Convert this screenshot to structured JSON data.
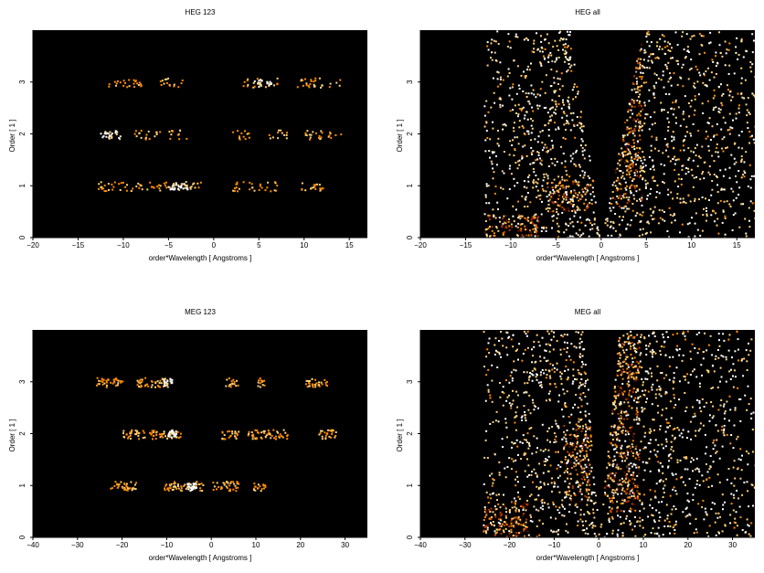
{
  "chart_data": [
    {
      "type": "heatmap",
      "panel": "top-left",
      "title": "HEG 123",
      "xlabel": "order*Wavelength [ Angstroms ]",
      "ylabel": "Order [ 1 ]",
      "xlim": [
        -20,
        17
      ],
      "ylim": [
        0,
        4
      ],
      "xticks": [
        -20,
        -15,
        -10,
        -5,
        0,
        5,
        10,
        15
      ],
      "yticks": [
        0,
        1,
        2,
        3
      ],
      "background": "#000000",
      "colormap": [
        "#000000",
        "#5a1000",
        "#b33a00",
        "#ff8c00",
        "#ffd27a",
        "#ffffff"
      ],
      "bands": [
        {
          "order": 1,
          "segments": [
            [
              -13,
              -6
            ],
            [
              -6,
              -1.5
            ],
            [
              2,
              7
            ],
            [
              9,
              12
            ]
          ],
          "peak_x": -4,
          "peak_density": 0.9
        },
        {
          "order": 2,
          "segments": [
            [
              -12,
              -10
            ],
            [
              -9,
              -6
            ],
            [
              -5,
              -3
            ],
            [
              2,
              4
            ],
            [
              6,
              8
            ],
            [
              10,
              14
            ]
          ],
          "peak_x": -11.5,
          "peak_density": 0.6
        },
        {
          "order": 3,
          "segments": [
            [
              -12,
              -8
            ],
            [
              -6,
              -3.5
            ],
            [
              3,
              7
            ],
            [
              9,
              14
            ]
          ],
          "peak_x": 5.5,
          "peak_density": 0.5
        }
      ]
    },
    {
      "type": "heatmap",
      "panel": "top-right",
      "title": "HEG all",
      "xlabel": "order*Wavelength [ Angstroms ]",
      "ylabel": "Order [ 1 ]",
      "xlim": [
        -20,
        17
      ],
      "ylim": [
        0,
        4
      ],
      "xticks": [
        -20,
        -15,
        -10,
        -5,
        0,
        5,
        10,
        15
      ],
      "yticks": [
        0,
        1,
        2,
        3
      ],
      "background": "#000000",
      "colormap": [
        "#000000",
        "#5a1000",
        "#b33a00",
        "#ff8c00",
        "#ffd27a",
        "#ffffff"
      ],
      "cone": {
        "apex_x": 0,
        "left_top_x": -3.5,
        "right_top_x": 4.5
      },
      "data_x_range": [
        -13,
        17
      ],
      "hot_regions": [
        {
          "x": [
            -13,
            -7
          ],
          "y": [
            0,
            0.45
          ],
          "intensity": 0.9
        },
        {
          "x": [
            -6,
            -1
          ],
          "y": [
            0.5,
            1.1
          ],
          "intensity": 0.8
        },
        {
          "x": [
            1,
            4.5
          ],
          "y": [
            0.6,
            3.9
          ],
          "intensity": 0.7
        }
      ]
    },
    {
      "type": "heatmap",
      "panel": "bottom-left",
      "title": "MEG 123",
      "xlabel": "order*Wavelength [ Angstroms ]",
      "ylabel": "Order [ 1 ]",
      "xlim": [
        -40,
        35
      ],
      "ylim": [
        0,
        4
      ],
      "xticks": [
        -40,
        -30,
        -20,
        -10,
        0,
        10,
        20,
        30
      ],
      "yticks": [
        0,
        1,
        2,
        3
      ],
      "background": "#000000",
      "colormap": [
        "#000000",
        "#5a1000",
        "#b33a00",
        "#ff8c00",
        "#ffd27a",
        "#ffffff"
      ],
      "bands": [
        {
          "order": 1,
          "segments": [
            [
              -23,
              -17
            ],
            [
              -11,
              -2
            ],
            [
              0,
              6
            ],
            [
              9,
              12
            ]
          ],
          "peak_x": -4.5,
          "peak_density": 0.9
        },
        {
          "order": 2,
          "segments": [
            [
              -20,
              -15
            ],
            [
              -14,
              -7
            ],
            [
              2,
              6
            ],
            [
              8,
              17
            ],
            [
              24,
              28
            ]
          ],
          "peak_x": -9,
          "peak_density": 0.5
        },
        {
          "order": 3,
          "segments": [
            [
              -26,
              -20
            ],
            [
              -17,
              -9
            ],
            [
              3,
              6
            ],
            [
              10,
              12
            ],
            [
              21,
              26
            ]
          ],
          "peak_x": -10,
          "peak_density": 0.5
        }
      ]
    },
    {
      "type": "heatmap",
      "panel": "bottom-right",
      "title": "MEG all",
      "xlabel": "order*Wavelength [ Angstroms ]",
      "ylabel": "Order [ 1 ]",
      "xlim": [
        -40,
        35
      ],
      "ylim": [
        0,
        4
      ],
      "xticks": [
        -40,
        -30,
        -20,
        -10,
        0,
        10,
        20,
        30
      ],
      "yticks": [
        0,
        1,
        2,
        3
      ],
      "background": "#000000",
      "colormap": [
        "#000000",
        "#5a1000",
        "#b33a00",
        "#ff8c00",
        "#ffd27a",
        "#ffffff"
      ],
      "cone": {
        "apex_x": 0,
        "left_top_x": -3.5,
        "right_top_x": 4.5
      },
      "data_x_range": [
        -26,
        35
      ],
      "hot_regions": [
        {
          "x": [
            -26,
            -16
          ],
          "y": [
            0,
            0.7
          ],
          "intensity": 0.9
        },
        {
          "x": [
            -8,
            -2
          ],
          "y": [
            0.7,
            2.2
          ],
          "intensity": 0.7
        },
        {
          "x": [
            1,
            9
          ],
          "y": [
            0.5,
            3.9
          ],
          "intensity": 0.7
        }
      ]
    }
  ]
}
